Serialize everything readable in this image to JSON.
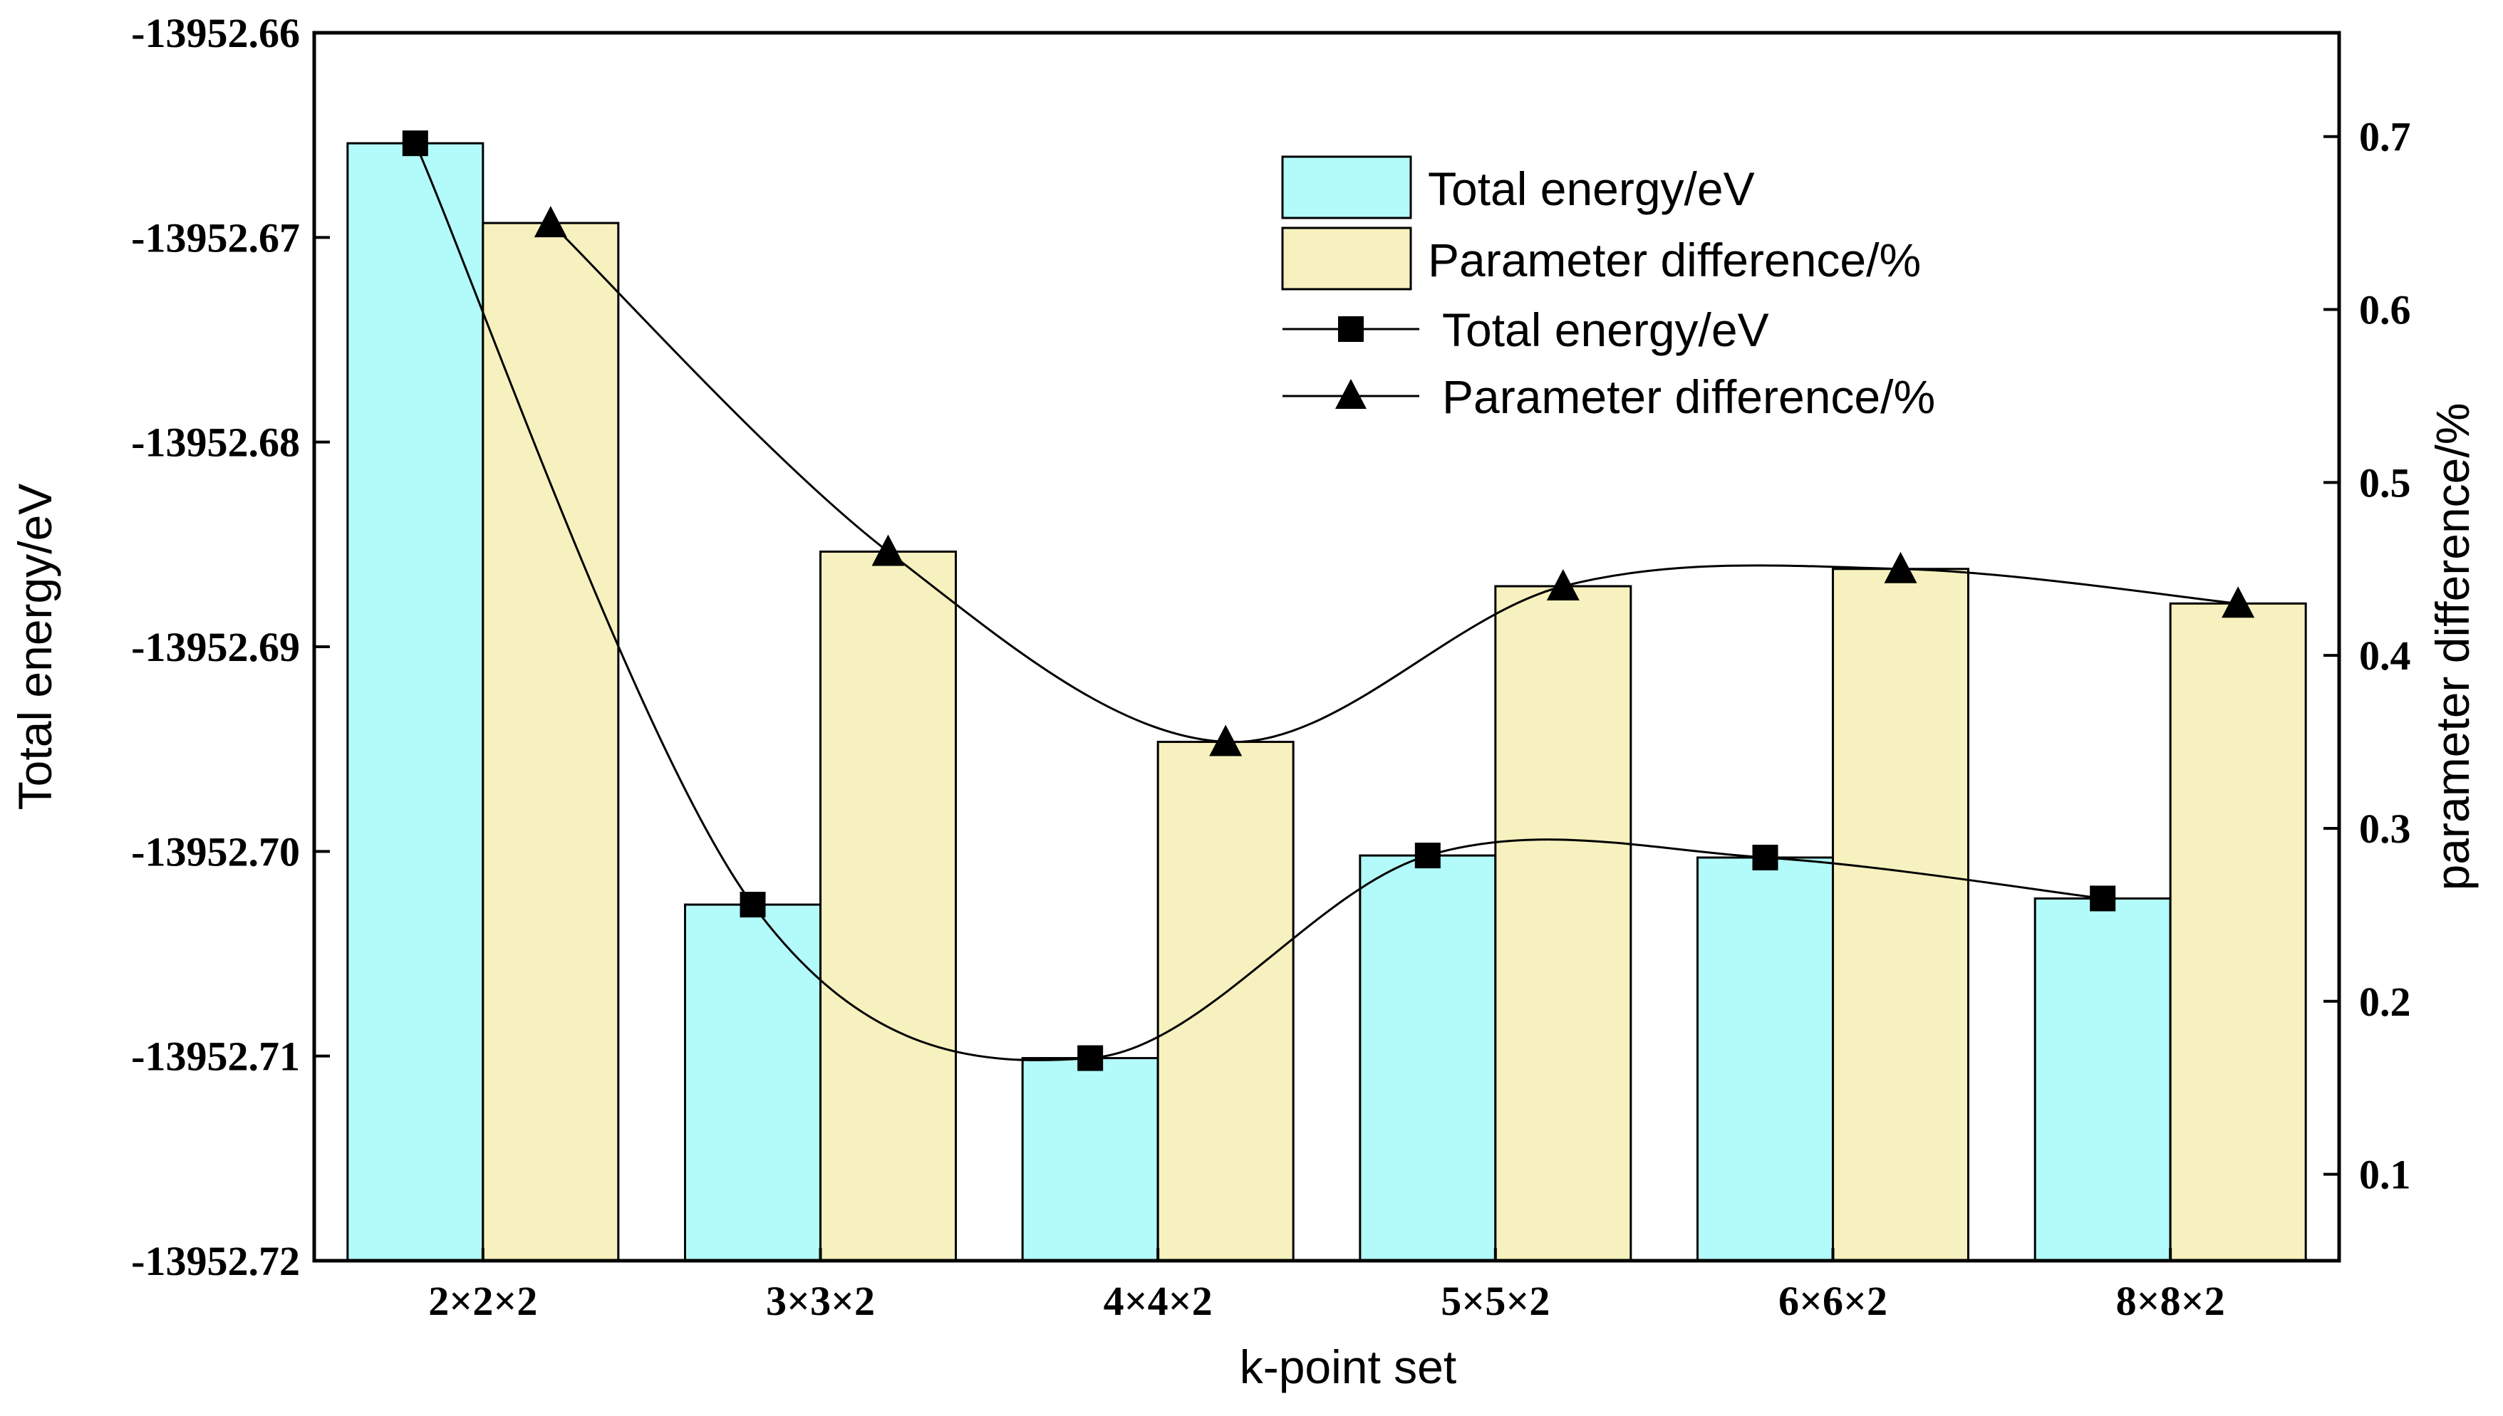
{
  "chart_data": {
    "type": "bar+line",
    "categories": [
      "2×2×2",
      "3×3×2",
      "4×4×2",
      "5×5×2",
      "6×6×2",
      "8×8×2"
    ],
    "xlabel": "k-point set",
    "ylabel_left": "Total energy/eV",
    "ylabel_right": "parameter difference/%",
    "ylim_left": [
      -13952.72,
      -13952.66
    ],
    "ylim_right": [
      0.05,
      0.76
    ],
    "yticks_left": [
      "-13952.66",
      "-13952.67",
      "-13952.68",
      "-13952.69",
      "-13952.70",
      "-13952.71",
      "-13952.72"
    ],
    "yticks_left_values": [
      -13952.66,
      -13952.67,
      -13952.68,
      -13952.69,
      -13952.7,
      -13952.71,
      -13952.72
    ],
    "yticks_right": [
      "0.1",
      "0.2",
      "0.3",
      "0.4",
      "0.5",
      "0.6",
      "0.7"
    ],
    "yticks_right_values": [
      0.1,
      0.2,
      0.3,
      0.4,
      0.5,
      0.6,
      0.7
    ],
    "series": [
      {
        "name": "Total energy/eV",
        "kind": "bar",
        "axis": "left",
        "color": "#B3FAFA",
        "values": [
          -13952.6654,
          -13952.7026,
          -13952.7101,
          -13952.7002,
          -13952.7003,
          -13952.7023
        ]
      },
      {
        "name": "Parameter difference/%",
        "kind": "bar",
        "axis": "right",
        "color": "#F6F1BE",
        "values": [
          0.65,
          0.46,
          0.35,
          0.44,
          0.45,
          0.43
        ]
      },
      {
        "name": "Total energy/eV",
        "kind": "line",
        "axis": "left",
        "marker": "square",
        "values": [
          -13952.6654,
          -13952.7026,
          -13952.7101,
          -13952.7002,
          -13952.7003,
          -13952.7023
        ]
      },
      {
        "name": "Parameter difference/%",
        "kind": "line",
        "axis": "right",
        "marker": "triangle",
        "values": [
          0.65,
          0.46,
          0.35,
          0.44,
          0.45,
          0.43
        ]
      }
    ],
    "legend": {
      "position": "top-right",
      "items": [
        "Total energy/eV",
        "Parameter difference/%",
        "Total energy/eV",
        "Parameter difference/%"
      ]
    }
  }
}
